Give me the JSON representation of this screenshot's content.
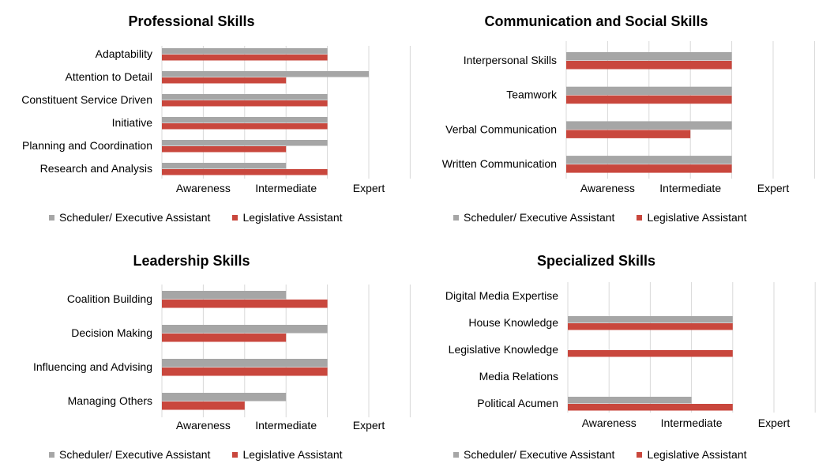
{
  "colors": {
    "series1": "#a6a6a6",
    "series2": "#c9473d",
    "grid": "#d9d9d9"
  },
  "chart_data": [
    {
      "type": "bar",
      "orientation": "horizontal",
      "title": "Professional Skills",
      "categories": [
        "Adaptability",
        "Attention to Detail",
        "Constituent Service Driven",
        "Initiative",
        "Planning and Coordination",
        "Research and Analysis"
      ],
      "x_tick_labels": [
        "Awareness",
        "Intermediate",
        "Expert"
      ],
      "xlim": [
        0,
        5
      ],
      "grid": true,
      "legend_position": "bottom",
      "series": [
        {
          "name": "Scheduler/ Executive Assistant",
          "values": [
            4,
            5,
            4,
            4,
            4,
            3
          ]
        },
        {
          "name": "Legislative Assistant",
          "values": [
            4,
            3,
            4,
            4,
            3,
            4
          ]
        }
      ]
    },
    {
      "type": "bar",
      "orientation": "horizontal",
      "title": "Communication and Social Skills",
      "categories": [
        "Interpersonal Skills",
        "Teamwork",
        "Verbal Communication",
        "Written Communication"
      ],
      "x_tick_labels": [
        "Awareness",
        "Intermediate",
        "Expert"
      ],
      "xlim": [
        0,
        5
      ],
      "grid": true,
      "legend_position": "bottom",
      "series": [
        {
          "name": "Scheduler/ Executive Assistant",
          "values": [
            4,
            4,
            4,
            4
          ]
        },
        {
          "name": "Legislative Assistant",
          "values": [
            4,
            4,
            3,
            4
          ]
        }
      ]
    },
    {
      "type": "bar",
      "orientation": "horizontal",
      "title": "Leadership Skills",
      "categories": [
        "Coalition Building",
        "Decision Making",
        "Influencing and Advising",
        "Managing Others"
      ],
      "x_tick_labels": [
        "Awareness",
        "Intermediate",
        "Expert"
      ],
      "xlim": [
        0,
        5
      ],
      "grid": true,
      "legend_position": "bottom",
      "series": [
        {
          "name": "Scheduler/ Executive Assistant",
          "values": [
            3,
            4,
            4,
            3
          ]
        },
        {
          "name": "Legislative Assistant",
          "values": [
            4,
            3,
            4,
            2
          ]
        }
      ]
    },
    {
      "type": "bar",
      "orientation": "horizontal",
      "title": "Specialized Skills",
      "categories": [
        "Digital Media Expertise",
        "House Knowledge",
        "Legislative Knowledge",
        "Media Relations",
        "Political Acumen"
      ],
      "x_tick_labels": [
        "Awareness",
        "Intermediate",
        "Expert"
      ],
      "xlim": [
        0,
        5
      ],
      "grid": true,
      "legend_position": "bottom",
      "series": [
        {
          "name": "Scheduler/ Executive Assistant",
          "values": [
            0,
            4,
            0,
            0,
            3
          ]
        },
        {
          "name": "Legislative Assistant",
          "values": [
            0,
            4,
            4,
            0,
            4
          ]
        }
      ]
    }
  ]
}
